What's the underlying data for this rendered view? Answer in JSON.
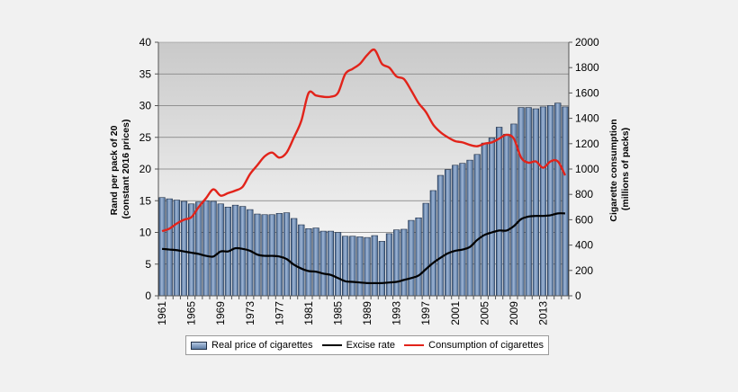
{
  "chart_data": {
    "type": "bar+line",
    "title": "",
    "years": [
      1961,
      1962,
      1963,
      1964,
      1965,
      1966,
      1967,
      1968,
      1969,
      1970,
      1971,
      1972,
      1973,
      1974,
      1975,
      1976,
      1977,
      1978,
      1979,
      1980,
      1981,
      1982,
      1983,
      1984,
      1985,
      1986,
      1987,
      1988,
      1989,
      1990,
      1991,
      1992,
      1993,
      1994,
      1995,
      1996,
      1997,
      1998,
      1999,
      2000,
      2001,
      2002,
      2003,
      2004,
      2005,
      2006,
      2007,
      2008,
      2009,
      2010,
      2011,
      2012,
      2013,
      2014,
      2015,
      2016
    ],
    "x_tick_labels": [
      "1961",
      "1965",
      "1969",
      "1973",
      "1977",
      "1981",
      "1985",
      "1989",
      "1993",
      "1997",
      "2001",
      "2005",
      "2009",
      "2013"
    ],
    "left_axis": {
      "label_line1": "Rand per pack of 20",
      "label_line2": "(constant 2016 prices)",
      "ylim": [
        0,
        40
      ],
      "ticks": [
        "0",
        "5",
        "10",
        "15",
        "20",
        "25",
        "30",
        "35",
        "40"
      ]
    },
    "right_axis": {
      "label_line1": "Cigarette consumption",
      "label_line2": "(millions of packs)",
      "ylim": [
        0,
        2000
      ],
      "ticks": [
        "0",
        "200",
        "400",
        "600",
        "800",
        "1000",
        "1200",
        "1400",
        "1600",
        "1800",
        "2000"
      ]
    },
    "series": [
      {
        "name": "Real price of cigarettes",
        "type": "bar",
        "axis": "left",
        "color": "#6f8fb8",
        "values": [
          15.5,
          15.3,
          15.1,
          14.9,
          14.5,
          14.8,
          15.0,
          14.9,
          14.5,
          14.0,
          14.3,
          14.1,
          13.6,
          12.9,
          12.8,
          12.8,
          13.0,
          13.1,
          12.2,
          11.2,
          10.6,
          10.7,
          10.2,
          10.2,
          10.0,
          9.4,
          9.4,
          9.3,
          9.2,
          9.5,
          8.6,
          9.8,
          10.4,
          10.5,
          11.9,
          12.3,
          14.6,
          16.6,
          19.0,
          19.9,
          20.6,
          20.9,
          21.4,
          22.3,
          24.1,
          24.9,
          26.6,
          25.5,
          27.1,
          29.7,
          29.7,
          29.5,
          29.8,
          30.0,
          30.4,
          29.8
        ]
      },
      {
        "name": "Excise rate",
        "type": "line",
        "axis": "left",
        "color": "#000000",
        "values": [
          7.4,
          7.3,
          7.2,
          7.0,
          6.8,
          6.6,
          6.3,
          6.2,
          7.0,
          7.0,
          7.5,
          7.4,
          7.1,
          6.5,
          6.3,
          6.3,
          6.2,
          5.8,
          4.9,
          4.3,
          3.9,
          3.8,
          3.5,
          3.3,
          2.8,
          2.3,
          2.2,
          2.1,
          2.0,
          2.0,
          2.0,
          2.1,
          2.2,
          2.5,
          2.8,
          3.2,
          4.2,
          5.2,
          6.0,
          6.7,
          7.1,
          7.3,
          7.7,
          8.8,
          9.6,
          10.0,
          10.3,
          10.3,
          11.0,
          12.1,
          12.5,
          12.6,
          12.6,
          12.7,
          13.0,
          13.0
        ]
      },
      {
        "name": "Consumption of cigarettes",
        "type": "line",
        "axis": "right",
        "color": "#e2231a",
        "values": [
          510,
          530,
          570,
          600,
          620,
          700,
          770,
          840,
          790,
          810,
          830,
          860,
          960,
          1030,
          1100,
          1130,
          1090,
          1130,
          1250,
          1380,
          1600,
          1580,
          1570,
          1570,
          1600,
          1750,
          1790,
          1830,
          1900,
          1940,
          1830,
          1800,
          1730,
          1710,
          1620,
          1520,
          1450,
          1350,
          1290,
          1250,
          1220,
          1210,
          1190,
          1180,
          1200,
          1210,
          1240,
          1270,
          1240,
          1090,
          1050,
          1060,
          1010,
          1060,
          1060,
          950
        ]
      }
    ],
    "legend_position": "bottom"
  }
}
